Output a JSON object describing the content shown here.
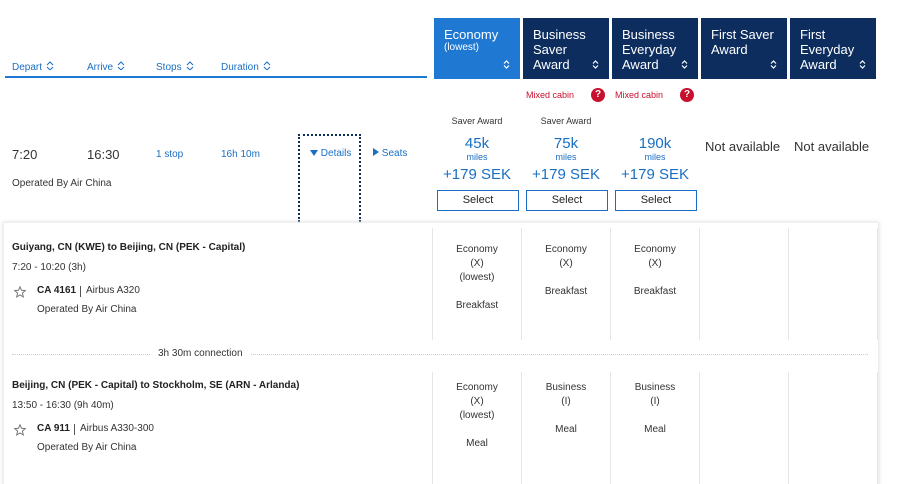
{
  "sort_headers": [
    "Depart",
    "Arrive",
    "Stops",
    "Duration"
  ],
  "fare_columns": [
    {
      "lines": [
        "Economy"
      ],
      "sub": "(lowest)"
    },
    {
      "lines": [
        "Business",
        "Saver",
        "Award"
      ]
    },
    {
      "lines": [
        "Business",
        "Everyday",
        "Award"
      ]
    },
    {
      "lines": [
        "First Saver",
        "Award"
      ]
    },
    {
      "lines": [
        "First",
        "Everyday",
        "Award"
      ]
    }
  ],
  "flight": {
    "depart": "7:20",
    "arrive": "16:30",
    "stops": "1 stop",
    "duration": "16h 10m",
    "details": "Details",
    "seats": "Seats",
    "operated_by": "Operated By Air China",
    "fares": [
      {
        "award_type": "Saver Award",
        "miles": "45k",
        "miles_unit": "miles",
        "price": "+179 SEK",
        "button": "Select"
      },
      {
        "note": "Mixed cabin",
        "note_icon": "?",
        "award_type": "Saver Award",
        "miles": "75k",
        "miles_unit": "miles",
        "price": "+179 SEK",
        "button": "Select"
      },
      {
        "note": "Mixed cabin",
        "note_icon": "?",
        "miles": "190k",
        "miles_unit": "miles",
        "price": "+179 SEK",
        "button": "Select"
      },
      {
        "status": "Not available"
      },
      {
        "status": "Not available"
      }
    ]
  },
  "segments": [
    {
      "route": "Guiyang, CN (KWE) to Beijing, CN (PEK - Capital)",
      "times": "7:20 - 10:20 (3h)",
      "flight_no": "CA 4161",
      "aircraft": "Airbus A320",
      "operated_by": "Operated By Air China",
      "cabins": [
        {
          "lines": [
            "Economy",
            "(X)",
            "(lowest)"
          ],
          "meal": "Breakfast"
        },
        {
          "lines": [
            "Economy",
            "(X)"
          ],
          "meal": "Breakfast"
        },
        {
          "lines": [
            "Economy",
            "(X)"
          ],
          "meal": "Breakfast"
        }
      ]
    },
    {
      "route": "Beijing, CN (PEK - Capital) to Stockholm, SE (ARN - Arlanda)",
      "times": "13:50 - 16:30 (9h 40m)",
      "flight_no": "CA 911",
      "aircraft": "Airbus A330-300",
      "operated_by": "Operated By Air China",
      "cabins": [
        {
          "lines": [
            "Economy",
            "(X)",
            "(lowest)"
          ],
          "meal": "Meal"
        },
        {
          "lines": [
            "Business",
            "(I)"
          ],
          "meal": "Meal"
        },
        {
          "lines": [
            "Business",
            "(I)"
          ],
          "meal": "Meal"
        }
      ]
    }
  ],
  "connection": "3h 30m connection"
}
